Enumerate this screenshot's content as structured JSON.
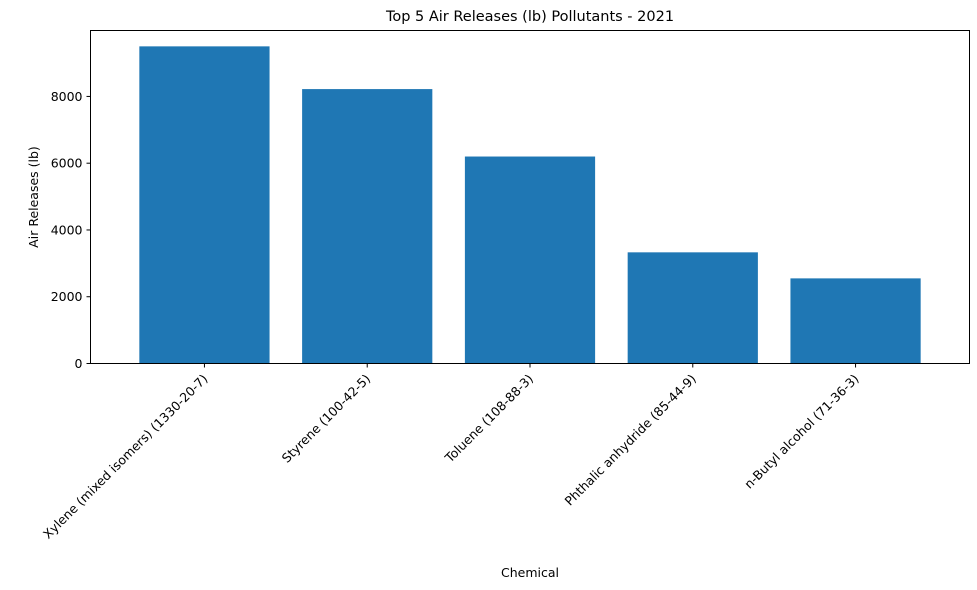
{
  "chart_data": {
    "type": "bar",
    "title": "Top 5 Air Releases (lb) Pollutants - 2021",
    "xlabel": "Chemical",
    "ylabel": "Air Releases (lb)",
    "categories": [
      "Xylene (mixed isomers) (1330-20-7)",
      "Styrene (100-42-5)",
      "Toluene (108-88-3)",
      "Phthalic anhydride (85-44-9)",
      "n-Butyl alcohol (71-36-3)"
    ],
    "values": [
      9500,
      8220,
      6200,
      3330,
      2550
    ],
    "ylim": [
      0,
      9975
    ],
    "yticks": [
      0,
      2000,
      4000,
      6000,
      8000
    ],
    "ytick_labels": [
      "0",
      "2000",
      "4000",
      "6000",
      "8000"
    ],
    "bar_color": "#1f77b4",
    "grid": false,
    "legend": false
  }
}
